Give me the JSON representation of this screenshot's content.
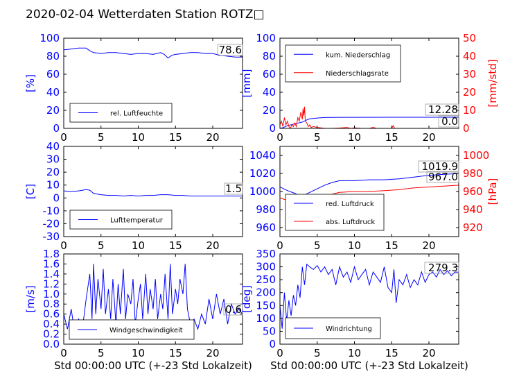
{
  "page": {
    "title": "2020-02-04 Wetterdaten Station ROTZ□"
  },
  "colors": {
    "blue": "#0000ff",
    "red": "#ff0000",
    "black": "#000000"
  },
  "chart_data": [
    {
      "type": "line",
      "id": "humidity",
      "ylabel": "[%]",
      "ylim": [
        0,
        100
      ],
      "yticks": [
        0,
        20,
        40,
        60,
        80,
        100
      ],
      "xlim": [
        0,
        24
      ],
      "xticks": [
        0,
        5,
        10,
        15,
        20
      ],
      "xlabel": "",
      "legend_position": "lower-left",
      "series": [
        {
          "name": "rel. Luftfeuchte",
          "color": "#0000ff",
          "x": [
            0,
            1,
            2,
            3,
            3.5,
            4,
            5,
            6,
            7,
            8,
            9,
            10,
            11,
            12,
            13,
            13.5,
            14,
            14.5,
            15,
            16,
            17,
            18,
            19,
            20,
            21,
            22,
            23,
            24
          ],
          "y": [
            87,
            88,
            89,
            89,
            86,
            84,
            83,
            84,
            84,
            83,
            82,
            83,
            83,
            82,
            84,
            82,
            78,
            81,
            82,
            83,
            84,
            84,
            83,
            83,
            81,
            80,
            79,
            79
          ]
        }
      ],
      "annotations": [
        {
          "text": "78.6",
          "color": "#000000"
        }
      ]
    },
    {
      "type": "line",
      "id": "precipitation",
      "ylabel": "[mm]",
      "ylim": [
        0,
        100
      ],
      "yticks": [
        0,
        20,
        40,
        60,
        80,
        100
      ],
      "y2label": "[mm/std]",
      "y2lim": [
        0,
        50
      ],
      "y2ticks": [
        0,
        10,
        20,
        30,
        40,
        50
      ],
      "xlim": [
        0,
        24
      ],
      "xticks": [
        0,
        5,
        10,
        15,
        20
      ],
      "xlabel": "",
      "legend_position": "upper-left",
      "series": [
        {
          "name": "kum. Niederschlag",
          "color": "#0000ff",
          "axis": "left",
          "x": [
            0,
            0.5,
            1,
            1.5,
            2,
            2.5,
            3,
            3.5,
            4,
            5,
            6,
            8,
            10,
            15,
            20,
            24
          ],
          "y": [
            0,
            1,
            3,
            4,
            5,
            6,
            7,
            9,
            10.5,
            11.5,
            12,
            12.2,
            12.2,
            12.28,
            12.28,
            12.28
          ]
        },
        {
          "name": "Niederschlagsrate",
          "color": "#ff0000",
          "axis": "right",
          "x": [
            0,
            0.2,
            0.4,
            0.6,
            0.8,
            1.0,
            1.2,
            1.4,
            1.6,
            1.8,
            2.0,
            2.2,
            2.4,
            2.6,
            2.8,
            3.0,
            3.1,
            3.2,
            3.3,
            3.4,
            3.6,
            3.8,
            4.0,
            4.2,
            4.5,
            5,
            5.5,
            6,
            7,
            8,
            9,
            9.5,
            10,
            11,
            12,
            12.5,
            13,
            14,
            15,
            15.2,
            15.4,
            16,
            17,
            18,
            19,
            20,
            21,
            22,
            23,
            24
          ],
          "y": [
            2,
            4,
            1,
            6,
            2,
            4,
            1,
            0,
            2,
            1,
            3,
            1,
            6,
            4,
            9,
            5,
            11,
            7,
            12,
            4,
            3,
            1,
            2,
            0.5,
            1,
            0.5,
            0.3,
            0,
            0,
            0.2,
            0.5,
            0,
            0.3,
            0,
            0,
            0.5,
            0,
            0,
            0,
            1.5,
            0,
            0,
            0,
            0,
            0,
            0,
            0,
            0,
            0,
            0
          ]
        }
      ],
      "annotations": [
        {
          "text": "12.28",
          "color": "#000000"
        },
        {
          "text": "0.0",
          "color": "#000000"
        }
      ]
    },
    {
      "type": "line",
      "id": "temperature",
      "ylabel": "[C]",
      "ylim": [
        -30,
        40
      ],
      "yticks": [
        -30,
        -20,
        -10,
        0,
        10,
        20,
        30,
        40
      ],
      "xlim": [
        0,
        24
      ],
      "xticks": [
        0,
        5,
        10,
        15,
        20
      ],
      "xlabel": "",
      "legend_position": "lower-left",
      "series": [
        {
          "name": "Lufttemperatur",
          "color": "#0000ff",
          "x": [
            0,
            1,
            2,
            3,
            3.5,
            4,
            5,
            6,
            7,
            8,
            9,
            10,
            11,
            12,
            13,
            14,
            15,
            16,
            17,
            18,
            19,
            20,
            21,
            22,
            23,
            24
          ],
          "y": [
            5.5,
            5,
            5.5,
            6.5,
            6,
            3.5,
            2.5,
            2,
            2,
            1.5,
            2,
            1.5,
            2,
            2,
            2.5,
            2.5,
            2,
            2,
            1.5,
            1.5,
            1.5,
            1.5,
            1.5,
            1.5,
            1.5,
            1.5
          ]
        }
      ],
      "annotations": [
        {
          "text": "1.5",
          "color": "#000000"
        }
      ]
    },
    {
      "type": "line",
      "id": "pressure",
      "ylabel": "",
      "ylim": [
        950,
        1050
      ],
      "yticks": [
        960,
        980,
        1000,
        1020,
        1040
      ],
      "y2label": "[hPa]",
      "y2lim": [
        910,
        1010
      ],
      "y2ticks": [
        920,
        940,
        960,
        980,
        1000
      ],
      "xlim": [
        0,
        24
      ],
      "xticks": [
        0,
        5,
        10,
        15,
        20
      ],
      "xlabel": "",
      "legend_position": "lower-center",
      "series": [
        {
          "name": "red. Luftdruck",
          "color": "#0000ff",
          "axis": "left",
          "x": [
            0,
            1,
            2,
            2.5,
            3,
            3.5,
            4,
            5,
            6,
            7,
            8,
            10,
            12,
            14,
            16,
            18,
            20,
            22,
            24
          ],
          "y": [
            1005,
            1001,
            998,
            996,
            996,
            997,
            999,
            1003,
            1007,
            1010,
            1012,
            1012,
            1013,
            1013,
            1014,
            1016,
            1018,
            1019,
            1019.9
          ]
        },
        {
          "name": "abs. Luftdruck",
          "color": "#ff0000",
          "axis": "right",
          "x": [
            0,
            1,
            2,
            3,
            4,
            5,
            6,
            7,
            8,
            10,
            12,
            14,
            16,
            18,
            20,
            22,
            24
          ],
          "y": [
            953,
            950,
            946,
            944,
            946,
            950,
            954,
            957,
            959,
            960,
            960,
            961,
            962,
            964,
            965,
            966,
            967
          ]
        }
      ],
      "annotations": [
        {
          "text": "1019.9",
          "color": "#000000"
        },
        {
          "text": "967.0",
          "color": "#000000"
        }
      ]
    },
    {
      "type": "line",
      "id": "wind-speed",
      "ylabel": "[m/s]",
      "ylim": [
        0.0,
        1.8
      ],
      "yticks": [
        0.0,
        0.2,
        0.4,
        0.6,
        0.8,
        1.0,
        1.2,
        1.4,
        1.6,
        1.8
      ],
      "xlim": [
        0,
        24
      ],
      "xticks": [
        0,
        5,
        10,
        15,
        20
      ],
      "xlabel": "Std 00:00:00 UTC (+-23 Std Lokalzeit)",
      "legend_position": "lower-center",
      "series": [
        {
          "name": "Windgeschwindigkeit",
          "color": "#0000ff",
          "x": [
            0,
            0.5,
            1,
            1.5,
            2,
            2.5,
            3,
            3.5,
            3.8,
            4,
            4.3,
            4.6,
            5,
            5.3,
            5.6,
            6,
            6.3,
            6.6,
            7,
            7.3,
            7.6,
            8,
            8.3,
            8.6,
            9,
            9.3,
            9.6,
            10,
            10.3,
            10.6,
            11,
            11.3,
            11.6,
            12,
            12.3,
            12.6,
            13,
            13.3,
            13.6,
            14,
            14.3,
            14.6,
            15,
            15.3,
            15.6,
            16,
            16.3,
            16.6,
            17,
            17.5,
            18,
            18.5,
            19,
            19.5,
            20,
            20.5,
            21,
            21.5,
            22,
            22.5,
            23,
            23.5,
            24
          ],
          "y": [
            0.6,
            0.3,
            0.7,
            0.2,
            0.5,
            0.3,
            0.9,
            1.4,
            0.5,
            1.6,
            0.6,
            1.3,
            0.7,
            1.5,
            0.6,
            1.1,
            0.5,
            1.3,
            0.4,
            1.2,
            0.6,
            1.5,
            0.5,
            1.0,
            0.8,
            1.3,
            0.4,
            0.9,
            1.2,
            0.5,
            1.4,
            0.6,
            1.1,
            0.7,
            1.3,
            0.5,
            1.0,
            0.7,
            1.4,
            0.5,
            1.6,
            0.6,
            1.1,
            0.8,
            1.3,
            1.0,
            1.6,
            0.7,
            0.4,
            0.5,
            0.3,
            0.6,
            0.4,
            0.9,
            0.5,
            1.0,
            0.6,
            0.9,
            0.4,
            0.8,
            0.6,
            0.7,
            0.6
          ]
        }
      ],
      "annotations": [
        {
          "text": "0.6",
          "color": "#000000"
        }
      ]
    },
    {
      "type": "line",
      "id": "wind-direction",
      "ylabel": "[deg]",
      "ylim": [
        0,
        350
      ],
      "yticks": [
        0,
        50,
        100,
        150,
        200,
        250,
        300,
        350
      ],
      "xlim": [
        0,
        24
      ],
      "xticks": [
        0,
        5,
        10,
        15,
        20
      ],
      "xlabel": "Std 00:00:00 UTC (+-23 Std Lokalzeit)",
      "legend_position": "lower-left",
      "series": [
        {
          "name": "Windrichtung",
          "color": "#0000ff",
          "x": [
            0,
            0.3,
            0.6,
            0.9,
            1.2,
            1.5,
            1.8,
            2.1,
            2.4,
            2.7,
            3.0,
            3.3,
            3.6,
            4,
            4.5,
            5,
            5.5,
            6,
            6.5,
            7,
            7.5,
            8,
            8.5,
            9,
            9.5,
            10,
            10.5,
            11,
            11.5,
            12,
            12.5,
            13,
            13.5,
            14,
            14.5,
            15,
            15.3,
            15.6,
            16,
            16.5,
            17,
            17.5,
            18,
            18.5,
            19,
            19.5,
            20,
            20.5,
            21,
            21.5,
            22,
            22.5,
            23,
            23.5,
            24
          ],
          "y": [
            150,
            60,
            200,
            90,
            170,
            110,
            190,
            150,
            230,
            180,
            300,
            230,
            310,
            300,
            290,
            305,
            280,
            300,
            270,
            290,
            230,
            300,
            260,
            280,
            240,
            300,
            250,
            270,
            290,
            230,
            280,
            260,
            240,
            300,
            220,
            200,
            290,
            160,
            250,
            230,
            270,
            220,
            250,
            230,
            280,
            240,
            270,
            280,
            260,
            290,
            270,
            285,
            265,
            280,
            279.3
          ]
        }
      ],
      "annotations": [
        {
          "text": "279.3",
          "color": "#000000"
        }
      ]
    }
  ]
}
